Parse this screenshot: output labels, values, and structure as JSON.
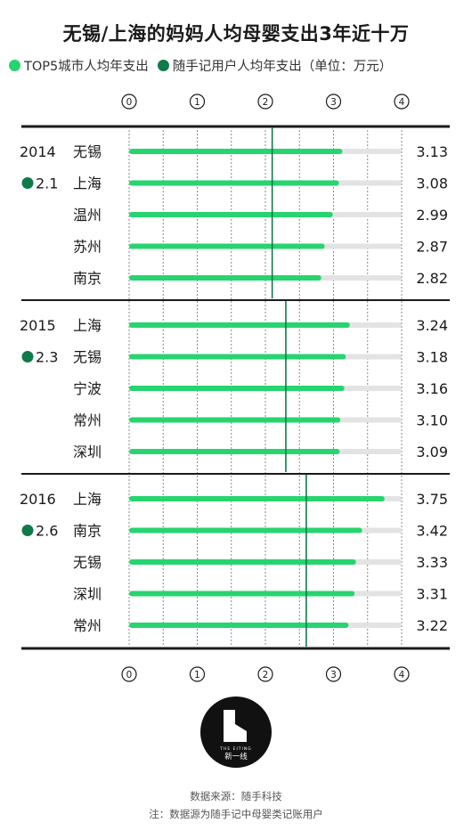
{
  "chart_data": {
    "type": "bar",
    "title": "无锡/上海的妈妈人均母婴支出3年近十万",
    "legend": [
      {
        "label": "TOP5城市人均年支出",
        "color": "#27d46f"
      },
      {
        "label": "随手记用户人均年支出（单位：万元）",
        "color": "#0f7a4a"
      }
    ],
    "axis": {
      "min": 0,
      "max": 4,
      "ticks": [
        "0",
        "1",
        "2",
        "3",
        "4"
      ],
      "track_max": 4
    },
    "groups": [
      {
        "year": "2014",
        "average": 2.1,
        "average_label": "2.1",
        "bars": [
          {
            "city": "无锡",
            "value": 3.13,
            "label": "3.13"
          },
          {
            "city": "上海",
            "value": 3.08,
            "label": "3.08"
          },
          {
            "city": "温州",
            "value": 2.99,
            "label": "2.99"
          },
          {
            "city": "苏州",
            "value": 2.87,
            "label": "2.87"
          },
          {
            "city": "南京",
            "value": 2.82,
            "label": "2.82"
          }
        ]
      },
      {
        "year": "2015",
        "average": 2.3,
        "average_label": "2.3",
        "bars": [
          {
            "city": "上海",
            "value": 3.24,
            "label": "3.24"
          },
          {
            "city": "无锡",
            "value": 3.18,
            "label": "3.18"
          },
          {
            "city": "宁波",
            "value": 3.16,
            "label": "3.16"
          },
          {
            "city": "常州",
            "value": 3.1,
            "label": "3.10"
          },
          {
            "city": "深圳",
            "value": 3.09,
            "label": "3.09"
          }
        ]
      },
      {
        "year": "2016",
        "average": 2.6,
        "average_label": "2.6",
        "bars": [
          {
            "city": "上海",
            "value": 3.75,
            "label": "3.75"
          },
          {
            "city": "南京",
            "value": 3.42,
            "label": "3.42"
          },
          {
            "city": "无锡",
            "value": 3.33,
            "label": "3.33"
          },
          {
            "city": "深圳",
            "value": 3.31,
            "label": "3.31"
          },
          {
            "city": "常州",
            "value": 3.22,
            "label": "3.22"
          }
        ]
      }
    ],
    "colors": {
      "bar": "#27d46f",
      "track": "#e3e3e3",
      "average_line": "#0f7a4a",
      "average_dot": "#0f7a4a"
    }
  },
  "logo": {
    "sub": "THE EITING",
    "name": "新一线"
  },
  "source": {
    "line1": "数据来源：随手科技",
    "line2": "注：数据源为随手记中母婴类记账用户"
  }
}
